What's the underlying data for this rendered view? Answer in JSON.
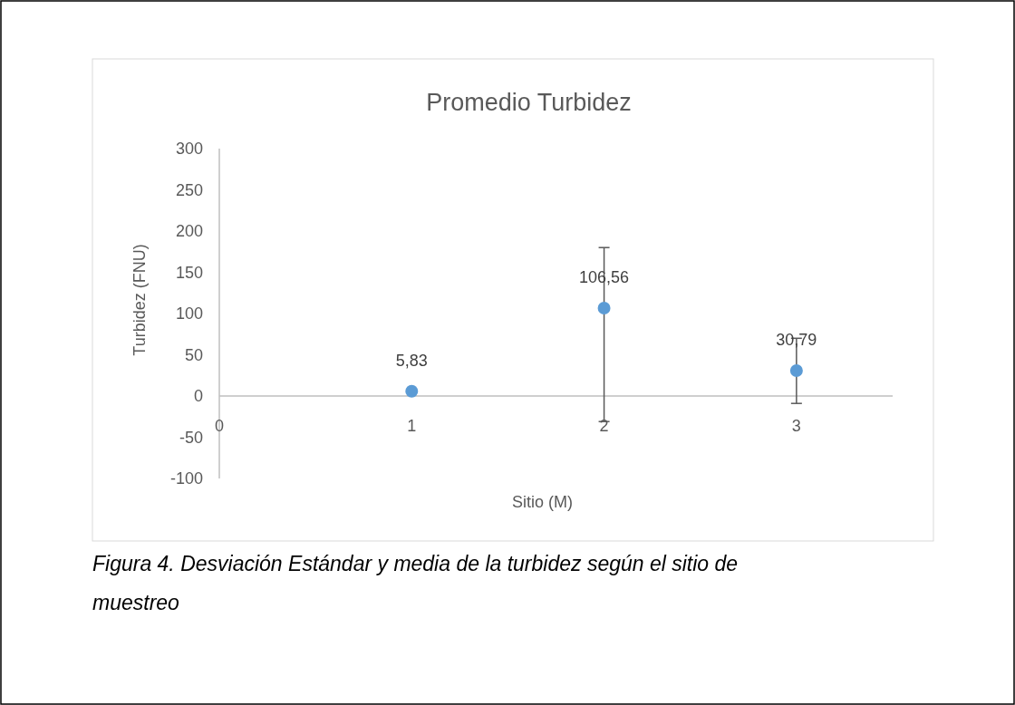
{
  "chart_data": {
    "type": "scatter",
    "title": "Promedio Turbidez",
    "xlabel": "Sitio (M)",
    "ylabel": "Turbidez (FNU)",
    "x": [
      1,
      2,
      3
    ],
    "values": [
      5.83,
      106.56,
      30.79
    ],
    "color": "#5b9bd5",
    "errors": [
      null,
      [
        -31,
        180
      ],
      [
        -9,
        70
      ]
    ],
    "value_labels": [
      "5,83",
      "106,56",
      "30,79"
    ],
    "xlim": [
      0,
      3.5
    ],
    "xticks": [
      0,
      1,
      2,
      3
    ],
    "ylim": [
      -100,
      300
    ],
    "yticks": [
      -100,
      -50,
      0,
      50,
      100,
      150,
      200,
      250,
      300
    ],
    "grid": false,
    "marker": "circle",
    "annotations": [
      "Figura 4. Desviación Estándar y media de la turbidez según el sitio de muestreo"
    ]
  }
}
